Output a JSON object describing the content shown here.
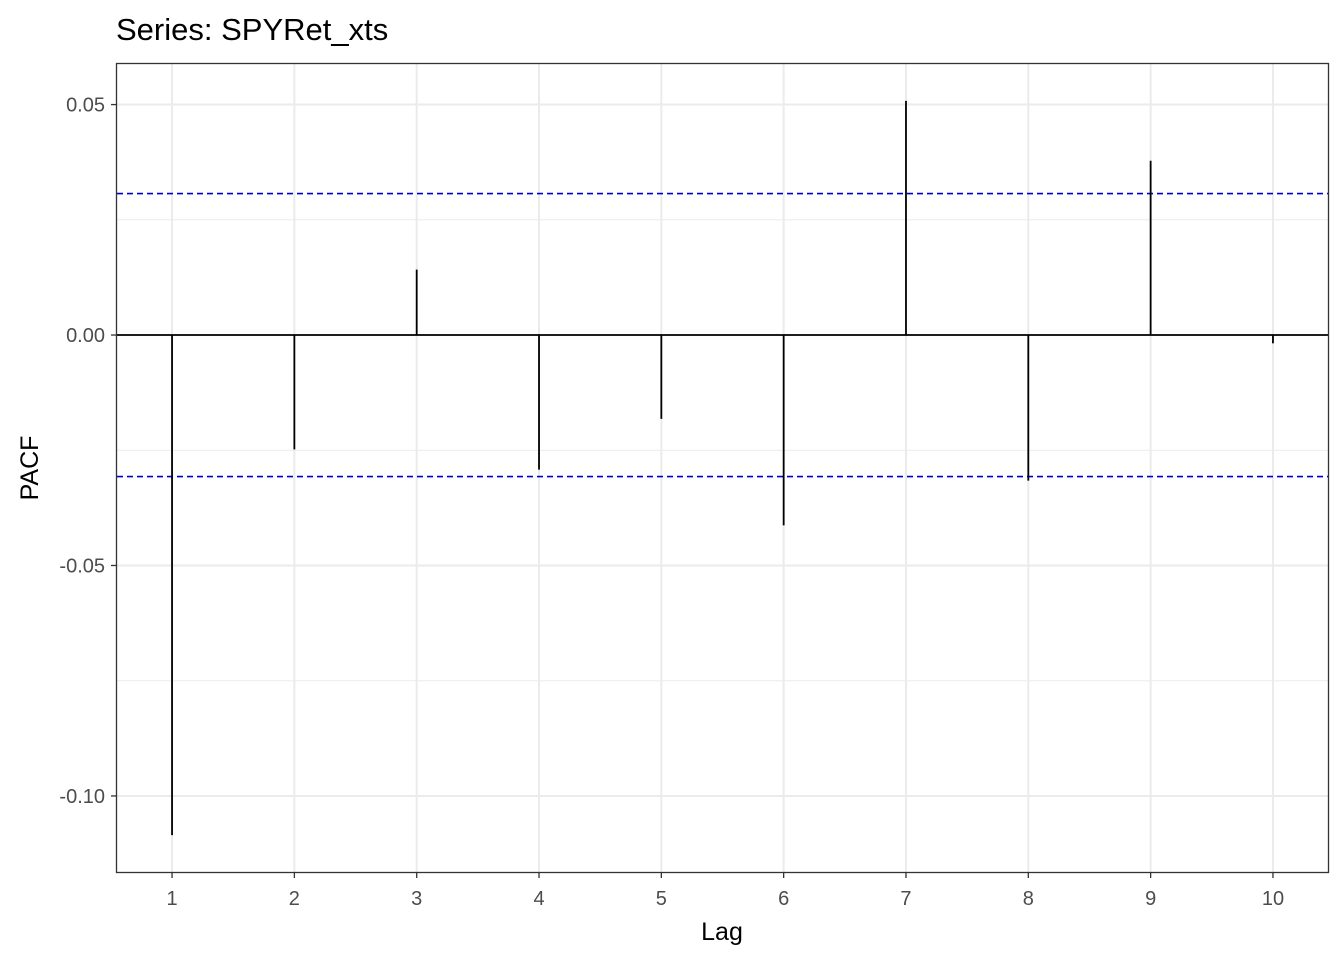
{
  "chart_data": {
    "type": "bar",
    "title": "Series: SPYRet_xts",
    "xlabel": "Lag",
    "ylabel": "PACF",
    "x": [
      1,
      2,
      3,
      4,
      5,
      6,
      7,
      8,
      9,
      10
    ],
    "values": [
      -0.1085,
      -0.0248,
      0.0142,
      -0.0292,
      -0.0182,
      -0.0413,
      0.0508,
      -0.0316,
      0.0378,
      -0.0018
    ],
    "confidence_bound": 0.0307,
    "xlim": [
      0.55,
      10.45
    ],
    "ylim": [
      -0.1165,
      0.0588
    ],
    "x_ticks": [
      1,
      2,
      3,
      4,
      5,
      6,
      7,
      8,
      9,
      10
    ],
    "x_tick_labels": [
      "1",
      "2",
      "3",
      "4",
      "5",
      "6",
      "7",
      "8",
      "9",
      "10"
    ],
    "y_ticks": [
      -0.1,
      -0.05,
      0.0,
      0.05
    ],
    "y_tick_labels": [
      "-0.10",
      "-0.05",
      "0.00",
      "0.05"
    ],
    "y_minor_ticks": [
      -0.075,
      -0.025,
      0.025
    ],
    "grid": true,
    "colors": {
      "bars": "#000000",
      "confidence_line": "#0000cc",
      "zero_line": "#000000",
      "grid": "#ebebeb",
      "panel_border": "#333333"
    }
  }
}
